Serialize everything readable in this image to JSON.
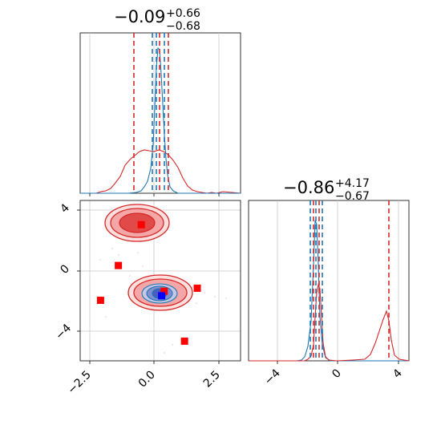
{
  "colors": {
    "series_blue": "#1f77b4",
    "series_red": "#d62728",
    "marker_blue": "#0000ff",
    "marker_red": "#ff0000",
    "grid": "#c8c8c8"
  },
  "titles": {
    "x1": {
      "main": "−0.09",
      "upper": "+0.66",
      "lower": "−0.68"
    },
    "x2": {
      "main": "−0.86",
      "upper": "+4.17",
      "lower": "−0.67"
    }
  },
  "chart_data": [
    {
      "panel": "marginal-x1",
      "type": "histogram",
      "x_range": [
        -3.0,
        3.3
      ],
      "grid": true,
      "series": [
        {
          "color": "blue",
          "center": 0.1,
          "spread": 0.22,
          "quantiles": [
            -0.05,
            0.1,
            0.45
          ]
        },
        {
          "color": "red",
          "center": -0.09,
          "spread": 0.9,
          "quantiles": [
            -0.77,
            -0.09,
            0.57
          ]
        }
      ]
    },
    {
      "panel": "joint-x1-x2",
      "type": "scatter",
      "x_range": [
        -3.0,
        3.3
      ],
      "y_range": [
        -5.8,
        4.8
      ],
      "grid": true,
      "x_ticks": [
        "−2.5",
        "0.0",
        "2.5"
      ],
      "y_ticks": [
        "4",
        "0",
        "−4"
      ],
      "blue_marker": {
        "x": 0.2,
        "y": -1.5
      },
      "red_markers": [
        {
          "x": -0.6,
          "y": 3.2
        },
        {
          "x": -1.5,
          "y": 0.5
        },
        {
          "x": -2.2,
          "y": -1.8
        },
        {
          "x": 0.3,
          "y": -1.2
        },
        {
          "x": 1.6,
          "y": -1.0
        },
        {
          "x": 1.1,
          "y": -4.5
        }
      ],
      "contours": [
        {
          "color": "red",
          "center": [
            -0.6,
            3.2
          ],
          "radius": [
            1.2,
            1.1
          ]
        },
        {
          "color": "red",
          "center": [
            0.2,
            -1.4
          ],
          "radius": [
            1.3,
            1.0
          ]
        },
        {
          "color": "blue",
          "center": [
            0.2,
            -1.4
          ],
          "radius": [
            0.7,
            0.55
          ]
        }
      ]
    },
    {
      "panel": "marginal-x2",
      "type": "histogram",
      "x_range": [
        -5.8,
        4.8
      ],
      "grid": true,
      "x_ticks": [
        "−4",
        "0",
        "4"
      ],
      "series": [
        {
          "color": "blue",
          "center": -1.4,
          "spread": 0.3,
          "quantiles": [
            -1.9,
            -1.45,
            -1.05
          ]
        },
        {
          "color": "red",
          "center": -0.86,
          "spread": 0.3,
          "quantiles": [
            -1.53,
            -0.86,
            3.31
          ]
        }
      ]
    }
  ]
}
